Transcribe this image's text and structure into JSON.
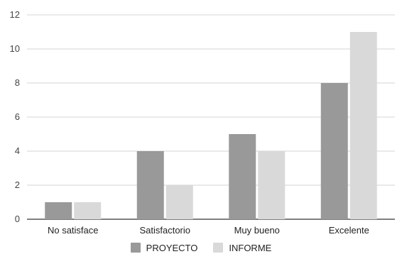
{
  "chart_data": {
    "type": "bar",
    "categories": [
      "No satisface",
      "Satisfactorio",
      "Muy bueno",
      "Excelente"
    ],
    "series": [
      {
        "name": "PROYECTO",
        "values": [
          1,
          4,
          5,
          8
        ],
        "color": "#999999"
      },
      {
        "name": "INFORME",
        "values": [
          1,
          2,
          4,
          11
        ],
        "color": "#d9d9d9"
      }
    ],
    "title": "",
    "xlabel": "",
    "ylabel": "",
    "ylim": [
      0,
      12
    ],
    "yticks": [
      "0",
      "2",
      "4",
      "6",
      "8",
      "10",
      "12"
    ],
    "grid": true,
    "legend_position": "bottom"
  }
}
